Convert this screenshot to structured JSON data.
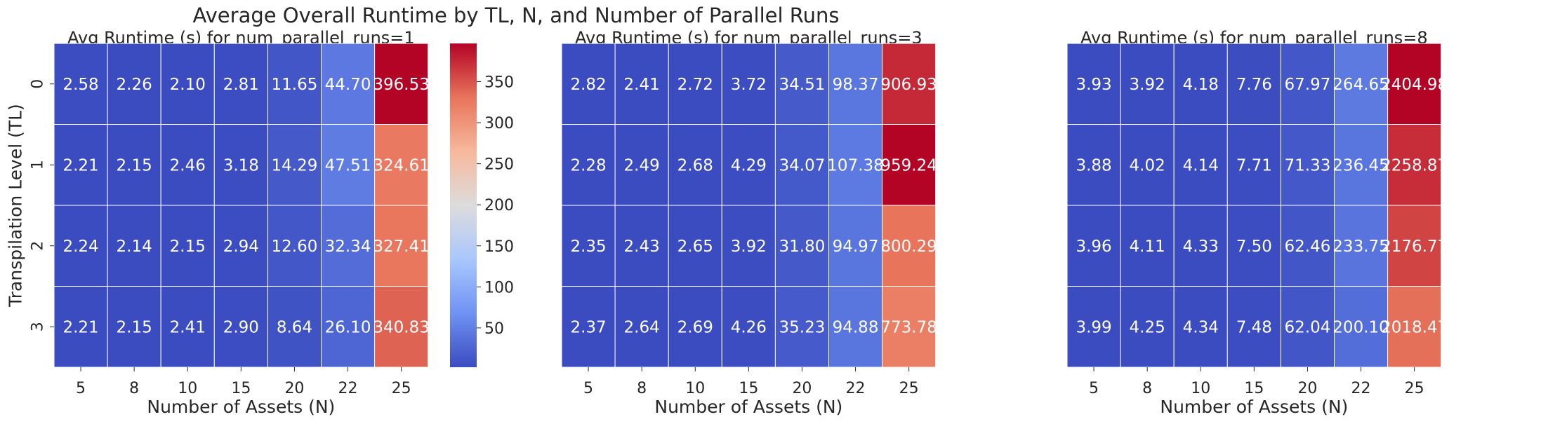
{
  "suptitle": "Average Overall Runtime by TL, N, and Number of Parallel Runs",
  "chart_data": [
    {
      "type": "heatmap",
      "title": "Avg Runtime (s) for num_parallel_runs=1",
      "xlabel": "Number of Assets (N)",
      "ylabel": "Transpilation Level (TL)",
      "x": [
        "5",
        "8",
        "10",
        "15",
        "20",
        "22",
        "25"
      ],
      "y": [
        "0",
        "1",
        "2",
        "3"
      ],
      "values": [
        [
          2.58,
          2.26,
          2.1,
          2.81,
          11.65,
          44.7,
          396.53
        ],
        [
          2.21,
          2.15,
          2.46,
          3.18,
          14.29,
          47.51,
          324.61
        ],
        [
          2.24,
          2.14,
          2.15,
          2.94,
          12.6,
          32.34,
          327.41
        ],
        [
          2.21,
          2.15,
          2.41,
          2.9,
          8.64,
          26.1,
          340.83
        ]
      ],
      "colorbar": {
        "ticks": [
          "50",
          "100",
          "150",
          "200",
          "250",
          "300",
          "350"
        ]
      }
    },
    {
      "type": "heatmap",
      "title": "Avg Runtime (s) for num_parallel_runs=3",
      "xlabel": "Number of Assets (N)",
      "ylabel": "",
      "x": [
        "5",
        "8",
        "10",
        "15",
        "20",
        "22",
        "25"
      ],
      "y": [
        "0",
        "1",
        "2",
        "3"
      ],
      "values": [
        [
          2.82,
          2.41,
          2.72,
          3.72,
          34.51,
          98.37,
          906.93
        ],
        [
          2.28,
          2.49,
          2.68,
          4.29,
          34.07,
          107.38,
          959.24
        ],
        [
          2.35,
          2.43,
          2.65,
          3.92,
          31.8,
          94.97,
          800.29
        ],
        [
          2.37,
          2.64,
          2.69,
          4.26,
          35.23,
          94.88,
          773.78
        ]
      ]
    },
    {
      "type": "heatmap",
      "title": "Avg Runtime (s) for num_parallel_runs=8",
      "xlabel": "Number of Assets (N)",
      "ylabel": "",
      "x": [
        "5",
        "8",
        "10",
        "15",
        "20",
        "22",
        "25"
      ],
      "y": [
        "0",
        "1",
        "2",
        "3"
      ],
      "values": [
        [
          3.93,
          3.92,
          4.18,
          7.76,
          67.97,
          264.65,
          2404.98
        ],
        [
          3.88,
          4.02,
          4.14,
          7.71,
          71.33,
          236.45,
          2258.87
        ],
        [
          3.96,
          4.11,
          4.33,
          7.5,
          62.46,
          233.75,
          2176.77
        ],
        [
          3.99,
          4.25,
          4.34,
          7.48,
          62.04,
          200.1,
          2018.47
        ]
      ]
    }
  ],
  "colormap": "coolwarm",
  "colormap_stops": [
    "#3b4cc0",
    "#6f92f3",
    "#aac7fd",
    "#dddcdc",
    "#f7b89c",
    "#e7745b",
    "#b40426"
  ]
}
